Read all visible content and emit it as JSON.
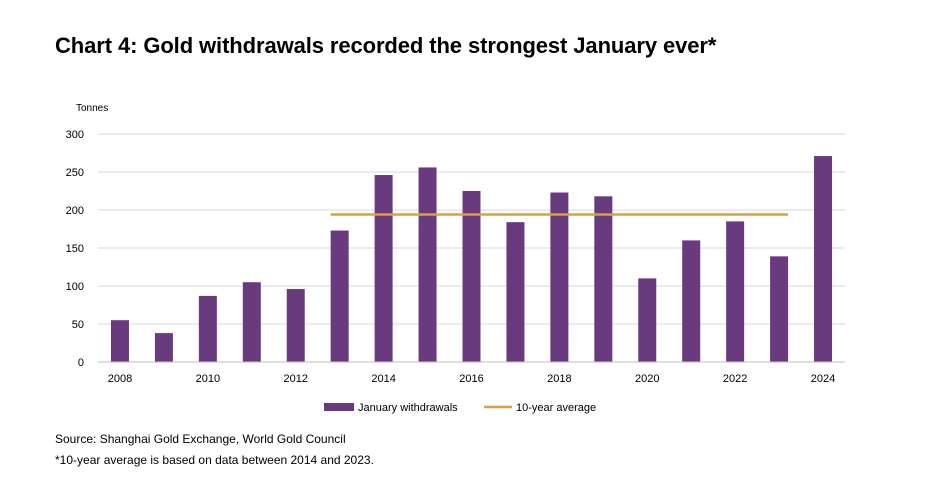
{
  "title": "Chart 4: Gold withdrawals recorded the strongest January ever*",
  "chart_data": {
    "type": "bar",
    "title": "Chart 4: Gold withdrawals recorded the strongest January ever*",
    "ylabel": "Tonnes",
    "xlabel": "",
    "ylim": [
      0,
      300
    ],
    "yticks": [
      0,
      50,
      100,
      150,
      200,
      250,
      300
    ],
    "categories": [
      "2008",
      "2009",
      "2010",
      "2011",
      "2012",
      "2013",
      "2014",
      "2015",
      "2016",
      "2017",
      "2018",
      "2019",
      "2020",
      "2021",
      "2022",
      "2023",
      "2024"
    ],
    "xtick_labels": [
      "2008",
      "2010",
      "2012",
      "2014",
      "2016",
      "2018",
      "2020",
      "2022",
      "2024"
    ],
    "series": [
      {
        "name": "January withdrawals",
        "type": "bar",
        "color": "#6a3a7e",
        "values": [
          55,
          38,
          87,
          105,
          96,
          173,
          246,
          256,
          225,
          184,
          223,
          218,
          110,
          160,
          185,
          139,
          271
        ]
      },
      {
        "name": "10-year average",
        "type": "line",
        "color": "#d4a04a",
        "x_start": "2013",
        "x_end": "2023",
        "value": 194
      }
    ],
    "legend": [
      "January withdrawals",
      "10-year average"
    ],
    "legend_position": "bottom",
    "grid": true
  },
  "footnotes": {
    "source": "Source: Shanghai Gold Exchange, World Gold Council",
    "note": "*10-year average is based on data between 2014 and 2023."
  }
}
